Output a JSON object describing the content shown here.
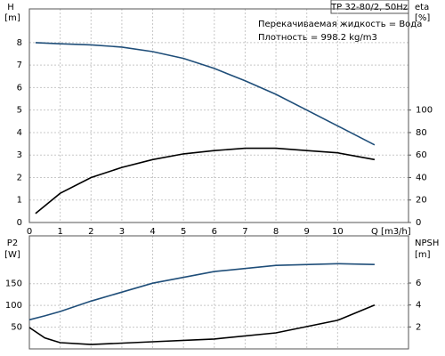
{
  "chart_data": [
    {
      "type": "line",
      "title": "TP 32-80/2, 50Hz",
      "annotations": [
        "Перекачиваемая жидкость = Вода",
        "Плотность = 998.2 kg/m3"
      ],
      "ylabel": "H",
      "yunit": "[m]",
      "y2label": "eta",
      "y2unit": "[%]",
      "xlabel": "Q [m3/h]",
      "x": [
        0.2,
        1,
        2,
        3,
        4,
        5,
        6,
        7,
        8,
        9,
        10,
        11.2
      ],
      "xlim": [
        0,
        12.3
      ],
      "xticks": [
        0,
        1,
        2,
        3,
        4,
        5,
        6,
        7,
        8,
        9,
        10
      ],
      "ylim": [
        0,
        9.5
      ],
      "yticks": [
        0,
        1,
        2,
        3,
        4,
        5,
        6,
        7,
        8
      ],
      "y2lim": [
        0,
        190
      ],
      "y2ticks": [
        0,
        20,
        40,
        60,
        80,
        100
      ],
      "grid": true,
      "series": [
        {
          "color": "#1f4e79",
          "values": [
            8.0,
            7.95,
            7.9,
            7.8,
            7.6,
            7.3,
            6.85,
            6.3,
            5.7,
            5.0,
            4.3,
            3.45
          ]
        },
        {
          "color": "#000000",
          "axis": "y2",
          "values": [
            8,
            26,
            40,
            49,
            56,
            61,
            64,
            66,
            66,
            64,
            62,
            56
          ]
        }
      ]
    },
    {
      "type": "line",
      "ylabel": "P2",
      "yunit": "[W]",
      "y2label": "NPSH",
      "y2unit": "[m]",
      "x": [
        0,
        0.5,
        1,
        2,
        4,
        6,
        8,
        10,
        11.2
      ],
      "xlim": [
        0,
        12.3
      ],
      "xticks": [
        0,
        1,
        2,
        3,
        4,
        5,
        6,
        7,
        8,
        9,
        10
      ],
      "ylim": [
        0,
        260
      ],
      "yticks": [
        50,
        100,
        150
      ],
      "y2lim": [
        0,
        10.3
      ],
      "y2ticks": [
        2,
        4,
        6
      ],
      "grid": true,
      "series": [
        {
          "color": "#1f4e79",
          "values": [
            67,
            76,
            86,
            110,
            151,
            178,
            192,
            196,
            194
          ]
        },
        {
          "color": "#000000",
          "axis": "y2",
          "values": [
            1.95,
            1.0,
            0.57,
            0.4,
            0.65,
            0.9,
            1.46,
            2.6,
            4.0
          ]
        }
      ]
    }
  ]
}
